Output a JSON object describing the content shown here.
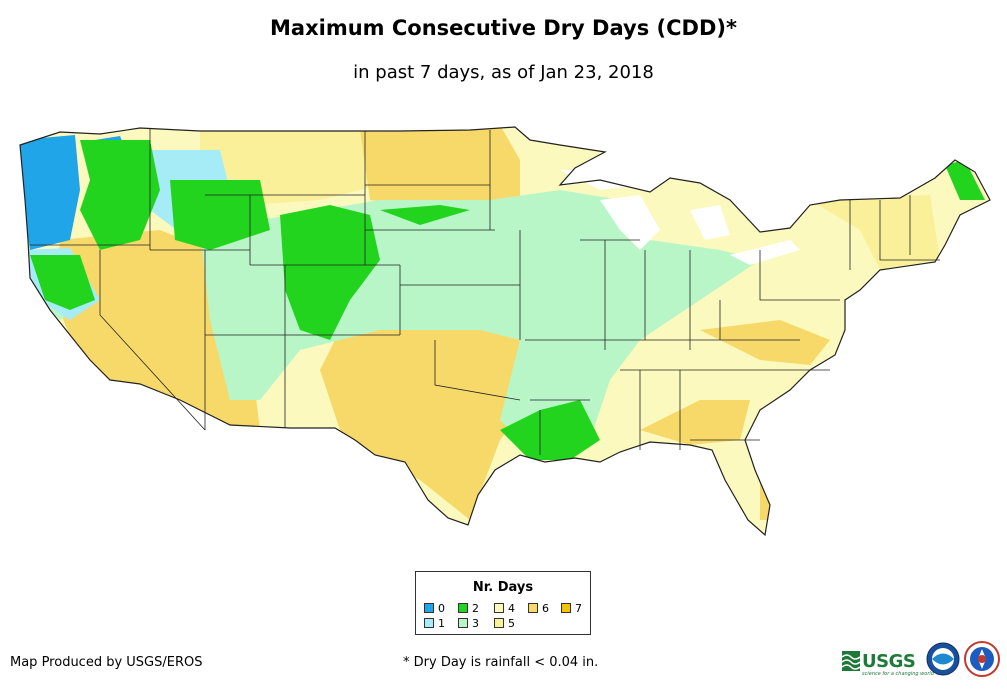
{
  "title": "Maximum Consecutive Dry Days (CDD)*",
  "subtitle": "in past 7 days, as of Jan 23, 2018",
  "legend": {
    "title": "Nr. Days",
    "items": [
      {
        "label": "0",
        "color": "#1fa5e8"
      },
      {
        "label": "1",
        "color": "#a5ecf7"
      },
      {
        "label": "2",
        "color": "#22d41e"
      },
      {
        "label": "3",
        "color": "#b8f6c8"
      },
      {
        "label": "4",
        "color": "#fbf9bd"
      },
      {
        "label": "5",
        "color": "#fbf09a"
      },
      {
        "label": "6",
        "color": "#f7d96a"
      },
      {
        "label": "7",
        "color": "#f2c400"
      }
    ]
  },
  "credits": {
    "producer": "Map Produced by USGS/EROS",
    "footnote": "* Dry Day is rainfall < 0.04 in."
  },
  "logos": {
    "usgs": "USGS",
    "usgs_tagline": "science for a changing world",
    "noaa": "noaa-logo",
    "nws": "nws-logo"
  }
}
